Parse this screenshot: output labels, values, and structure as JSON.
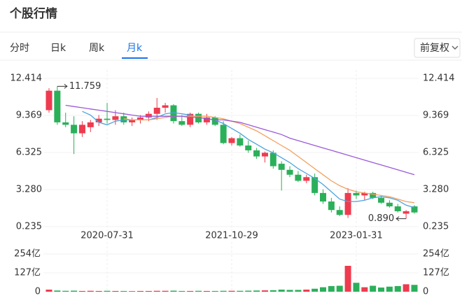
{
  "header": {
    "title": "个股行情"
  },
  "tabs": {
    "items": [
      "分时",
      "日k",
      "周k",
      "月k"
    ],
    "active": 3
  },
  "adjust": "前复权",
  "chart_data": {
    "type": "candlestick",
    "categories": [
      null,
      null,
      null,
      null,
      null,
      null,
      null,
      "2020-07-31",
      null,
      null,
      null,
      null,
      null,
      null,
      null,
      null,
      null,
      null,
      null,
      null,
      null,
      null,
      "2021-10-29",
      null,
      null,
      null,
      null,
      null,
      null,
      null,
      null,
      null,
      null,
      null,
      null,
      null,
      null,
      "2023-01-31",
      null,
      null,
      null,
      null,
      null,
      null,
      null
    ],
    "open": [
      9.8,
      11.4,
      8.8,
      8.6,
      7.9,
      8.4,
      8.8,
      9.1,
      9.0,
      9.3,
      8.8,
      9.0,
      9.2,
      9.5,
      10.0,
      10.2,
      8.9,
      8.6,
      9.5,
      8.8,
      9.2,
      8.6,
      7.1,
      7.5,
      6.9,
      6.5,
      6.0,
      6.3,
      5.4,
      4.9,
      4.5,
      4.0,
      4.3,
      3.0,
      2.3,
      1.6,
      1.2,
      3.0,
      2.8,
      3.0,
      2.6,
      2.2,
      1.9,
      1.3,
      1.9
    ],
    "high": [
      11.6,
      11.759,
      9.6,
      9.3,
      8.9,
      9.0,
      9.4,
      10.4,
      9.8,
      9.6,
      9.2,
      9.4,
      9.7,
      10.8,
      10.4,
      10.3,
      9.4,
      9.6,
      9.6,
      9.5,
      9.3,
      8.9,
      7.6,
      7.8,
      7.3,
      6.7,
      6.4,
      6.5,
      5.6,
      5.2,
      4.8,
      4.5,
      4.6,
      3.3,
      2.6,
      1.9,
      3.4,
      3.2,
      3.1,
      3.1,
      2.8,
      2.4,
      2.1,
      1.6,
      2.0
    ],
    "low": [
      9.6,
      8.6,
      8.4,
      6.2,
      7.6,
      8.0,
      8.5,
      8.7,
      8.6,
      8.6,
      8.5,
      8.7,
      8.9,
      9.0,
      9.6,
      8.7,
      8.5,
      8.4,
      8.7,
      8.6,
      8.5,
      7.0,
      6.9,
      6.8,
      6.3,
      5.8,
      5.5,
      5.0,
      3.2,
      4.3,
      3.9,
      3.8,
      2.8,
      2.1,
      1.4,
      1.1,
      0.95,
      2.5,
      2.4,
      2.5,
      2.1,
      1.8,
      1.4,
      0.89,
      1.3
    ],
    "close": [
      11.4,
      8.8,
      8.6,
      7.9,
      8.6,
      8.8,
      9.1,
      9.0,
      9.3,
      8.8,
      9.0,
      9.2,
      9.5,
      10.0,
      10.2,
      8.9,
      8.6,
      9.5,
      8.8,
      9.2,
      8.6,
      7.1,
      7.5,
      6.9,
      6.5,
      6.0,
      6.3,
      5.2,
      4.9,
      4.5,
      4.0,
      4.3,
      3.0,
      2.3,
      1.6,
      1.2,
      3.0,
      2.8,
      3.0,
      2.6,
      2.2,
      1.9,
      1.5,
      1.5,
      1.4
    ],
    "up_color": "#ee3b4f",
    "down_color": "#2bb05a",
    "ylim": [
      0.235,
      12.414
    ],
    "yticks": [
      12.414,
      9.369,
      6.325,
      {
        "value": 3.28,
        "label": "3.280"
      },
      0.235
    ],
    "grid": true,
    "lines": [
      {
        "color": "#4aa3df",
        "values": [
          null,
          null,
          null,
          null,
          9.7,
          9.4,
          8.8,
          8.6,
          8.9,
          9.0,
          9.0,
          9.0,
          9.0,
          9.2,
          9.5,
          9.6,
          9.5,
          9.4,
          9.2,
          9.1,
          9.0,
          8.7,
          8.3,
          7.9,
          7.4,
          7.0,
          6.6,
          6.3,
          5.9,
          5.5,
          5.0,
          4.6,
          4.2,
          3.7,
          3.1,
          2.5,
          2.3,
          2.3,
          2.4,
          2.6,
          2.7,
          2.6,
          2.4,
          2.0,
          1.8
        ]
      },
      {
        "color": "#f3a05f",
        "values": [
          null,
          null,
          null,
          null,
          null,
          null,
          null,
          null,
          null,
          9.1,
          9.0,
          9.0,
          9.0,
          9.1,
          9.2,
          9.3,
          9.3,
          9.3,
          9.3,
          9.3,
          9.2,
          9.1,
          8.9,
          8.7,
          8.4,
          8.1,
          7.7,
          7.3,
          6.9,
          6.5,
          6.0,
          5.5,
          5.0,
          4.5,
          4.0,
          3.6,
          3.3,
          3.1,
          3.0,
          2.9,
          2.8,
          2.7,
          2.5,
          2.3,
          2.2
        ]
      },
      {
        "color": "#9b5ad8",
        "values": [
          null,
          null,
          10.2,
          10.1,
          10.0,
          9.9,
          9.8,
          9.7,
          9.6,
          9.5,
          9.4,
          9.3,
          9.3,
          9.3,
          9.3,
          9.3,
          9.3,
          9.2,
          9.2,
          9.1,
          9.0,
          9.0,
          8.9,
          8.8,
          8.6,
          8.4,
          8.2,
          8.0,
          7.8,
          7.5,
          7.3,
          7.1,
          6.9,
          6.7,
          6.5,
          6.3,
          6.1,
          5.9,
          5.7,
          5.5,
          5.3,
          5.1,
          4.9,
          4.7,
          4.5
        ]
      }
    ],
    "extreme_labels": {
      "high": "11.759",
      "low": "0.890"
    },
    "volume": {
      "values": [
        14,
        8,
        6,
        7,
        5,
        6,
        5,
        6,
        5,
        5,
        4,
        5,
        5,
        6,
        6,
        7,
        5,
        5,
        6,
        5,
        5,
        6,
        6,
        6,
        7,
        8,
        9,
        10,
        14,
        12,
        12,
        14,
        20,
        30,
        38,
        40,
        174,
        60,
        30,
        40,
        28,
        34,
        38,
        50,
        46
      ],
      "ylim": [
        0,
        254
      ],
      "yticks": [
        {
          "value": 254,
          "label": "254亿"
        },
        {
          "value": 127,
          "label": "127亿"
        },
        0
      ]
    }
  }
}
